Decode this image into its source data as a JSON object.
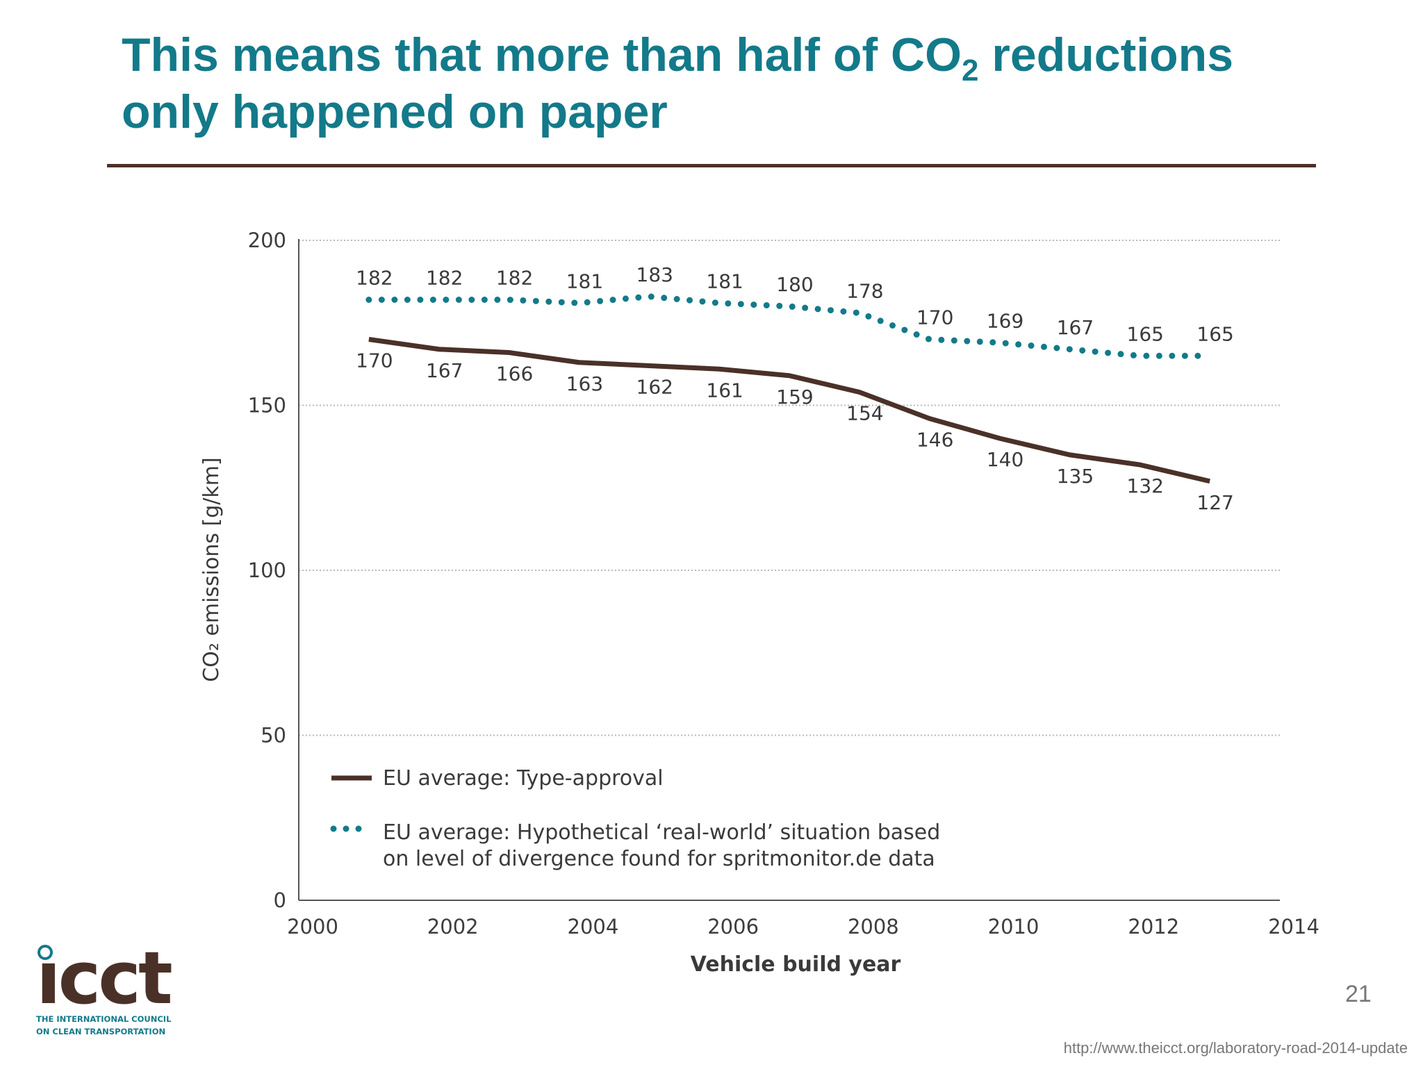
{
  "slide": {
    "title_part1": "This means that more than half of CO",
    "title_sub": "2",
    "title_part2": " reductions",
    "title_line2": "only happened on paper",
    "page_number": "21",
    "url": "http://www.theicct.org/laboratory-road-2014-update"
  },
  "logo": {
    "wordmark": "icct",
    "tagline_line1": "THE INTERNATIONAL COUNCIL",
    "tagline_line2": "ON CLEAN TRANSPORTATION"
  },
  "chart_data": {
    "type": "line",
    "xlabel": "Vehicle build year",
    "ylabel": "CO₂ emissions [g/km]",
    "xlim": [
      2000,
      2014
    ],
    "ylim": [
      0,
      200
    ],
    "xticks": [
      "2000",
      "2002",
      "2004",
      "2006",
      "2008",
      "2010",
      "2012",
      "2014"
    ],
    "yticks": [
      "0",
      "50",
      "100",
      "150",
      "200"
    ],
    "grid": "horizontal dotted",
    "legend_position": "bottom-left",
    "x": [
      2001,
      2002,
      2003,
      2004,
      2005,
      2006,
      2007,
      2008,
      2009,
      2010,
      2011,
      2012,
      2013
    ],
    "series": [
      {
        "name": "EU average: Type-approval",
        "style": "solid",
        "color": "#4a3128",
        "values": [
          170,
          167,
          166,
          163,
          162,
          161,
          159,
          154,
          146,
          140,
          135,
          132,
          127
        ]
      },
      {
        "name": "EU average: Hypothetical ‘real-world’ situation based on level of divergence found for spritmonitor.de data",
        "name_line1": "EU average: Hypothetical ‘real-world’ situation based",
        "name_line2": "on level of divergence found for spritmonitor.de data",
        "style": "dotted",
        "color": "#137a8a",
        "values": [
          182,
          182,
          182,
          181,
          183,
          181,
          180,
          178,
          170,
          169,
          167,
          165,
          165
        ]
      }
    ]
  }
}
